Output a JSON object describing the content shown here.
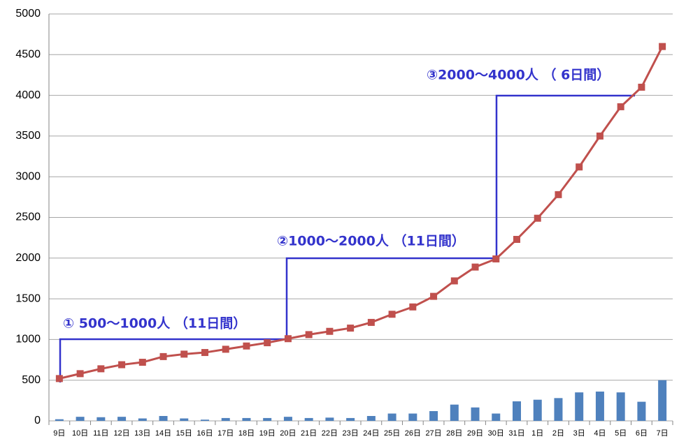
{
  "chart_data": {
    "type": "combo",
    "categories": [
      "9日",
      "10日",
      "11日",
      "12日",
      "13日",
      "14日",
      "15日",
      "16日",
      "17日",
      "18日",
      "19日",
      "20日",
      "21日",
      "22日",
      "23日",
      "24日",
      "25日",
      "26日",
      "27日",
      "28日",
      "29日",
      "30日",
      "31日",
      "1日",
      "2日",
      "3日",
      "4日",
      "5日",
      "6日",
      "7日"
    ],
    "series": [
      {
        "type": "bar",
        "color": "#4f81bd",
        "values": [
          20,
          50,
          45,
          50,
          30,
          60,
          30,
          15,
          35,
          35,
          35,
          50,
          35,
          40,
          35,
          60,
          90,
          90,
          120,
          200,
          165,
          90,
          240,
          260,
          280,
          350,
          360,
          350,
          235,
          500
        ]
      },
      {
        "type": "line",
        "color": "#c0504d",
        "values": [
          520,
          580,
          640,
          690,
          720,
          790,
          820,
          840,
          880,
          920,
          960,
          1010,
          1060,
          1100,
          1140,
          1210,
          1310,
          1400,
          1530,
          1720,
          1890,
          1990,
          2230,
          2490,
          2780,
          3120,
          3500,
          3860,
          4100,
          4600
        ]
      }
    ],
    "ylim": [
      0,
      5000
    ],
    "yticks": [
      0,
      500,
      1000,
      1500,
      2000,
      2500,
      3000,
      3500,
      4000,
      4500,
      5000
    ],
    "grid": true,
    "annotations": [
      "①  500〜1000人 （11日間）",
      "②1000〜2000人 （11日間）",
      "③2000〜4000人 （ 6日間）"
    ]
  }
}
